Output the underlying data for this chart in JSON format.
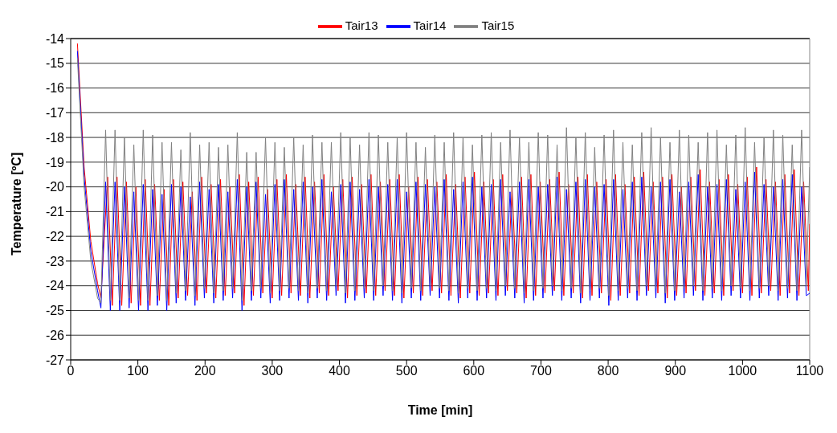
{
  "chart_data": {
    "type": "line",
    "xlabel": "Time [min]",
    "ylabel": "Temperature [ºC]",
    "x": [
      10,
      20,
      30,
      40,
      45,
      52,
      59,
      66,
      73,
      80,
      87,
      94,
      101,
      108,
      115,
      122,
      129,
      136,
      143,
      150,
      157,
      164,
      171,
      178,
      185,
      192,
      199,
      206,
      213,
      220,
      227,
      234,
      241,
      248,
      255,
      262,
      269,
      276,
      283,
      290,
      297,
      304,
      311,
      318,
      325,
      332,
      339,
      346,
      353,
      360,
      367,
      374,
      381,
      388,
      395,
      402,
      409,
      416,
      423,
      430,
      437,
      444,
      451,
      458,
      465,
      472,
      479,
      486,
      493,
      500,
      507,
      514,
      521,
      528,
      535,
      542,
      549,
      556,
      563,
      570,
      577,
      584,
      591,
      598,
      605,
      612,
      619,
      626,
      633,
      640,
      647,
      654,
      661,
      668,
      675,
      682,
      689,
      696,
      703,
      710,
      717,
      724,
      731,
      738,
      745,
      752,
      759,
      766,
      773,
      780,
      787,
      794,
      801,
      808,
      815,
      822,
      829,
      836,
      843,
      850,
      857,
      864,
      871,
      878,
      885,
      892,
      899,
      906,
      913,
      920,
      927,
      934,
      941,
      948,
      955,
      962,
      969,
      976,
      983,
      990,
      997,
      1004,
      1011,
      1018,
      1025,
      1032,
      1039,
      1046,
      1053,
      1060,
      1067,
      1074,
      1081,
      1088,
      1095,
      1100
    ],
    "series": [
      {
        "name": "Tair13",
        "color": "#ff0000",
        "x": [
          10,
          20,
          30,
          40,
          45,
          55,
          62,
          69,
          76,
          83,
          90,
          97,
          104,
          111,
          118,
          125,
          132,
          139,
          146,
          153,
          160,
          167,
          174,
          181,
          188,
          195,
          202,
          209,
          216,
          223,
          230,
          237,
          244,
          251,
          258,
          265,
          272,
          279,
          286,
          293,
          300,
          307,
          314,
          321,
          328,
          335,
          342,
          349,
          356,
          363,
          370,
          377,
          384,
          391,
          398,
          405,
          412,
          419,
          426,
          433,
          440,
          447,
          454,
          461,
          468,
          475,
          482,
          489,
          496,
          503,
          510,
          517,
          524,
          531,
          538,
          545,
          552,
          559,
          566,
          573,
          580,
          587,
          594,
          601,
          608,
          615,
          622,
          629,
          636,
          643,
          650,
          657,
          664,
          671,
          678,
          685,
          692,
          699,
          706,
          713,
          720,
          727,
          734,
          741,
          748,
          755,
          762,
          769,
          776,
          783,
          790,
          797,
          804,
          811,
          818,
          825,
          832,
          839,
          846,
          853,
          860,
          867,
          874,
          881,
          888,
          895,
          902,
          909,
          916,
          923,
          930,
          937,
          944,
          951,
          958,
          965,
          972,
          979,
          986,
          993,
          1000,
          1007,
          1014,
          1021,
          1028,
          1035,
          1042,
          1049,
          1056,
          1063,
          1070,
          1077,
          1084,
          1091,
          1098,
          1100
        ],
        "values": [
          -14.2,
          -19.2,
          -22.2,
          -23.9,
          -24.5,
          -19.6,
          -24.8,
          -19.6,
          -24.8,
          -19.8,
          -24.7,
          -20.0,
          -24.8,
          -19.7,
          -24.8,
          -19.9,
          -24.6,
          -20.1,
          -24.8,
          -19.7,
          -24.5,
          -19.8,
          -24.4,
          -20.2,
          -24.6,
          -19.6,
          -24.3,
          -19.9,
          -24.5,
          -19.7,
          -24.4,
          -20.0,
          -24.3,
          -19.5,
          -24.8,
          -19.8,
          -24.4,
          -19.6,
          -24.3,
          -20.1,
          -24.5,
          -19.7,
          -24.4,
          -19.5,
          -24.3,
          -19.9,
          -24.4,
          -19.6,
          -24.5,
          -19.8,
          -24.3,
          -19.5,
          -24.4,
          -20.0,
          -24.2,
          -19.7,
          -24.5,
          -19.6,
          -24.4,
          -19.9,
          -24.3,
          -19.5,
          -24.4,
          -19.8,
          -24.2,
          -19.7,
          -24.4,
          -19.5,
          -24.5,
          -20.0,
          -24.3,
          -19.6,
          -24.4,
          -19.7,
          -24.2,
          -19.8,
          -24.3,
          -19.5,
          -24.4,
          -19.9,
          -24.5,
          -19.6,
          -24.3,
          -19.4,
          -24.4,
          -19.8,
          -24.3,
          -19.7,
          -24.4,
          -19.5,
          -24.2,
          -20.0,
          -24.3,
          -19.6,
          -24.5,
          -19.5,
          -24.4,
          -19.8,
          -24.3,
          -19.7,
          -24.2,
          -19.4,
          -24.4,
          -19.9,
          -24.3,
          -19.6,
          -24.5,
          -19.5,
          -24.4,
          -19.8,
          -24.3,
          -19.7,
          -24.6,
          -19.5,
          -24.4,
          -19.9,
          -24.3,
          -19.6,
          -24.4,
          -19.4,
          -24.2,
          -19.8,
          -24.3,
          -19.6,
          -24.5,
          -19.5,
          -24.4,
          -20.0,
          -24.3,
          -19.6,
          -24.2,
          -19.3,
          -24.4,
          -19.8,
          -24.3,
          -19.7,
          -24.4,
          -19.5,
          -24.2,
          -19.9,
          -24.3,
          -19.6,
          -24.4,
          -19.2,
          -24.3,
          -19.7,
          -24.2,
          -19.8,
          -24.4,
          -19.5,
          -24.3,
          -19.3,
          -24.4,
          -19.8,
          -24.2,
          -21.5
        ]
      },
      {
        "name": "Tair14",
        "color": "#0000ff",
        "values": [
          -14.5,
          -19.6,
          -22.6,
          -24.2,
          -24.9,
          -19.8,
          -25.0,
          -19.8,
          -25.0,
          -20.0,
          -24.9,
          -20.2,
          -25.0,
          -19.9,
          -25.0,
          -20.1,
          -24.8,
          -20.3,
          -25.0,
          -19.9,
          -24.7,
          -20.0,
          -24.6,
          -20.4,
          -24.8,
          -19.8,
          -24.5,
          -20.1,
          -24.7,
          -19.9,
          -24.6,
          -20.2,
          -24.5,
          -19.7,
          -25.0,
          -20.0,
          -24.6,
          -19.8,
          -24.5,
          -20.3,
          -24.7,
          -19.9,
          -24.6,
          -19.7,
          -24.5,
          -20.1,
          -24.6,
          -19.8,
          -24.7,
          -20.0,
          -24.5,
          -19.7,
          -24.6,
          -20.2,
          -24.4,
          -19.9,
          -24.7,
          -19.8,
          -24.6,
          -20.1,
          -24.5,
          -19.7,
          -24.6,
          -20.0,
          -24.4,
          -19.9,
          -24.6,
          -19.7,
          -24.7,
          -20.2,
          -24.5,
          -19.8,
          -24.6,
          -19.9,
          -24.4,
          -20.0,
          -24.5,
          -19.7,
          -24.6,
          -20.1,
          -24.7,
          -19.8,
          -24.5,
          -19.6,
          -24.6,
          -20.0,
          -24.5,
          -19.9,
          -24.6,
          -19.7,
          -24.4,
          -20.2,
          -24.5,
          -19.8,
          -24.7,
          -19.7,
          -24.6,
          -20.0,
          -24.5,
          -19.9,
          -24.4,
          -19.6,
          -24.6,
          -20.1,
          -24.5,
          -19.8,
          -24.7,
          -19.7,
          -24.6,
          -20.0,
          -24.5,
          -19.9,
          -24.8,
          -19.7,
          -24.6,
          -20.1,
          -24.5,
          -19.8,
          -24.6,
          -19.6,
          -24.4,
          -20.0,
          -24.5,
          -19.8,
          -24.7,
          -19.7,
          -24.6,
          -20.2,
          -24.5,
          -19.8,
          -24.4,
          -19.5,
          -24.6,
          -20.0,
          -24.5,
          -19.9,
          -24.6,
          -19.7,
          -24.4,
          -20.1,
          -24.5,
          -19.8,
          -24.6,
          -19.4,
          -24.5,
          -19.9,
          -24.4,
          -20.0,
          -24.6,
          -19.7,
          -24.5,
          -19.5,
          -24.6,
          -20.0,
          -24.4,
          -24.3
        ]
      },
      {
        "name": "Tair15",
        "color": "#808080",
        "values": [
          -14.8,
          -20.0,
          -23.0,
          -24.5,
          -24.7,
          -17.7,
          -24.6,
          -17.7,
          -24.6,
          -18.0,
          -24.5,
          -18.3,
          -24.6,
          -17.7,
          -24.6,
          -17.9,
          -24.4,
          -18.2,
          -24.6,
          -18.2,
          -24.3,
          -18.5,
          -24.2,
          -17.8,
          -24.4,
          -18.3,
          -24.1,
          -18.2,
          -24.3,
          -18.4,
          -24.2,
          -18.3,
          -24.1,
          -17.8,
          -24.6,
          -18.6,
          -24.2,
          -18.6,
          -24.1,
          -18.0,
          -24.3,
          -18.2,
          -24.2,
          -18.4,
          -24.1,
          -18.0,
          -24.2,
          -18.3,
          -24.3,
          -17.9,
          -24.1,
          -18.2,
          -24.2,
          -18.2,
          -24.0,
          -17.8,
          -24.3,
          -18.0,
          -24.2,
          -18.3,
          -24.1,
          -17.8,
          -24.2,
          -17.9,
          -24.0,
          -18.2,
          -24.2,
          -18.0,
          -24.3,
          -17.8,
          -24.1,
          -18.2,
          -24.2,
          -18.4,
          -24.0,
          -17.9,
          -24.1,
          -18.2,
          -24.2,
          -17.8,
          -24.3,
          -18.0,
          -24.1,
          -18.3,
          -24.2,
          -17.9,
          -24.1,
          -17.8,
          -24.2,
          -18.2,
          -24.0,
          -17.7,
          -24.1,
          -18.0,
          -24.3,
          -18.2,
          -24.2,
          -17.8,
          -24.1,
          -17.9,
          -24.0,
          -18.3,
          -24.2,
          -17.6,
          -24.1,
          -18.0,
          -24.3,
          -17.8,
          -24.2,
          -18.4,
          -24.1,
          -17.9,
          -24.4,
          -17.7,
          -24.2,
          -18.2,
          -24.1,
          -18.3,
          -24.2,
          -17.8,
          -24.0,
          -17.6,
          -24.1,
          -18.0,
          -24.3,
          -18.2,
          -24.2,
          -17.7,
          -24.1,
          -17.9,
          -24.0,
          -18.2,
          -24.2,
          -17.8,
          -24.1,
          -17.7,
          -24.2,
          -18.3,
          -24.0,
          -17.9,
          -24.1,
          -17.6,
          -24.2,
          -18.2,
          -24.1,
          -18.0,
          -24.0,
          -17.7,
          -24.2,
          -17.9,
          -24.1,
          -18.3,
          -24.2,
          -17.7,
          -24.0,
          -19.2
        ]
      }
    ],
    "xlim": [
      0,
      1100
    ],
    "xticks": [
      0,
      100,
      200,
      300,
      400,
      500,
      600,
      700,
      800,
      900,
      1000,
      1100
    ],
    "ylim": [
      -27,
      -14
    ],
    "yticks": [
      -27,
      -26,
      -25,
      -24,
      -23,
      -22,
      -21,
      -20,
      -19,
      -18,
      -17,
      -16,
      -15,
      -14
    ],
    "grid": "y",
    "legend": "top",
    "marker": "none",
    "line_style": "solid"
  }
}
